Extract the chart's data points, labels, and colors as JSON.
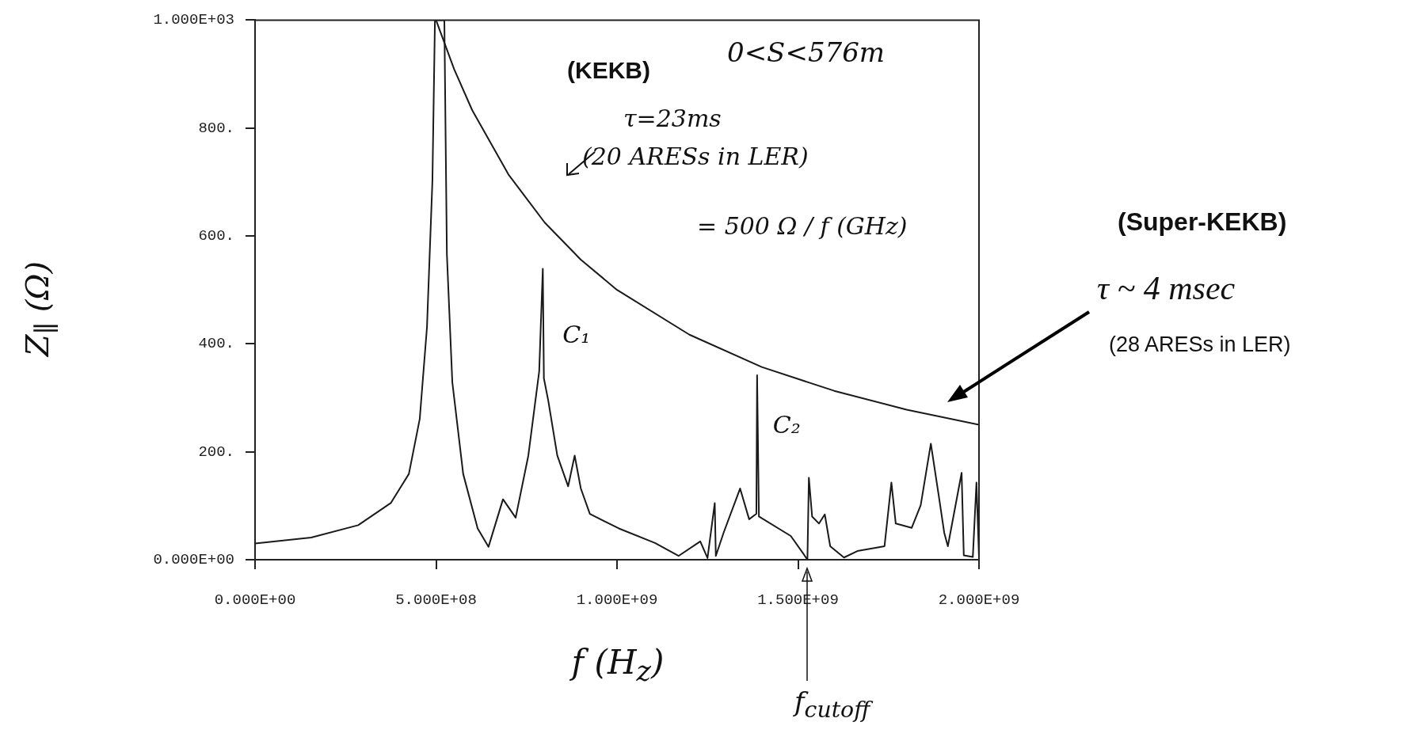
{
  "chart_data": {
    "type": "line",
    "xlabel": "f (H$_{z}$)",
    "ylabel": "Z$_{∥}$ (Ω)",
    "xlim": [
      0,
      2000000000
    ],
    "ylim": [
      0,
      1000
    ],
    "xticks": [
      {
        "value": 0,
        "label": "0.000E+00"
      },
      {
        "value": 500000000,
        "label": "5.000E+08"
      },
      {
        "value": 1000000000,
        "label": "1.000E+09"
      },
      {
        "value": 1500000000,
        "label": "1.500E+09"
      },
      {
        "value": 2000000000,
        "label": "2.000E+09"
      }
    ],
    "yticks": [
      {
        "value": 0,
        "label": "0.000E+00"
      },
      {
        "value": 200,
        "label": "200."
      },
      {
        "value": 400,
        "label": "400."
      },
      {
        "value": 600,
        "label": "600."
      },
      {
        "value": 800,
        "label": "800."
      },
      {
        "value": 1000,
        "label": "1.000E+03"
      }
    ],
    "series": [
      {
        "color": "#1a1a1a",
        "x": [
          0,
          155000000,
          285000000,
          375000000,
          425000000,
          455000000,
          475000000,
          490000000,
          497000000,
          523000000,
          530000000,
          545000000,
          575000000,
          615000000,
          645000000,
          685000000,
          720000000,
          755000000,
          785000000,
          795000000,
          798000000,
          810000000,
          835000000,
          865000000,
          883000000,
          900000000,
          925000000,
          1005000000,
          1105000000,
          1170000000,
          1230000000,
          1250000000,
          1270000000,
          1273000000,
          1295000000,
          1340000000,
          1365000000,
          1385000000,
          1387000000,
          1392000000,
          1480000000,
          1514000000,
          1526000000,
          1530000000,
          1539000000,
          1558000000,
          1574000000,
          1589000000,
          1627000000,
          1664000000,
          1739000000,
          1758000000,
          1770000000,
          1814000000,
          1839000000,
          1867000000,
          1889000000,
          1904000000,
          1914000000,
          1952000000,
          1958000000,
          1983000000,
          1993000000,
          2000000000
        ],
        "values": [
          30,
          41,
          64,
          105,
          159,
          261,
          431,
          702,
          1000,
          1000,
          566,
          329,
          159,
          58,
          24,
          112,
          78,
          193,
          349,
          539,
          336,
          295,
          193,
          136,
          193,
          132,
          85,
          58,
          31,
          7,
          34,
          3,
          105,
          7,
          51,
          132,
          75,
          85,
          342,
          80,
          44,
          12,
          0,
          152,
          80,
          67,
          84,
          25,
          4,
          16,
          25,
          143,
          67,
          59,
          101,
          215,
          118,
          50,
          25,
          161,
          8,
          5,
          143,
          5
        ]
      },
      {
        "color": "#1a1a1a",
        "x": [
          500000000,
          550000000,
          600000000,
          700000000,
          800000000,
          900000000,
          1000000000,
          1200000000,
          1400000000,
          1600000000,
          1800000000,
          2000000000
        ],
        "values": [
          1000,
          909,
          833,
          714,
          625,
          556,
          500,
          417,
          357,
          313,
          278,
          250
        ]
      }
    ],
    "annotations": [
      "(KEKB)",
      "0<S<576m",
      "τ=23ms",
      "(20 ARESs in LER)",
      "= 500 Ω / f (GHz)",
      {
        "text": "C₁",
        "x": 795000000,
        "y": 539
      },
      {
        "text": "C₂",
        "x": 1387000000,
        "y": 342
      },
      "(Super-KEKB)",
      "τ ~ 4 msec",
      "(28 ARESs in LER)",
      "f$_{cutoff}$"
    ]
  }
}
